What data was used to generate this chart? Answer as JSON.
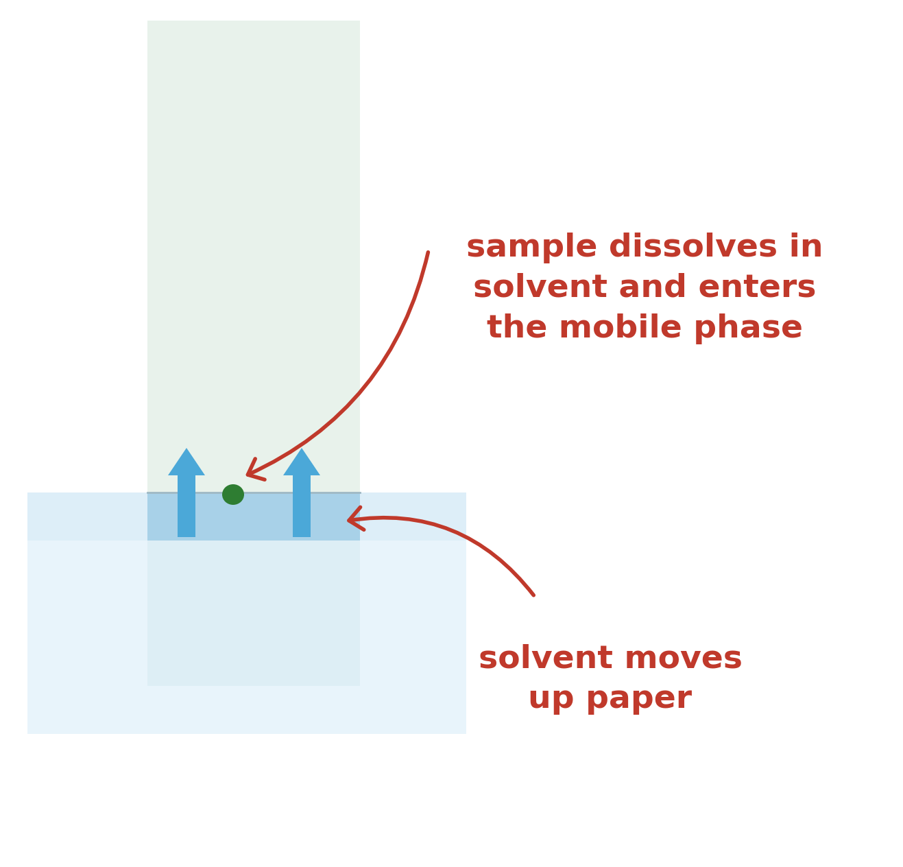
{
  "bg_color": "#ffffff",
  "fig_width": 13.17,
  "fig_height": 12.64,
  "paper_color": "#e8f2eb",
  "paper_border_color": "#c8d8ca",
  "trough_color": "#ddeef8",
  "trough_bg_color": "#e8f4fb",
  "solvent_band_color": "#a8d1e8",
  "solvent_band_line_color": "#9eb8c4",
  "green_dot_color": "#2e7d32",
  "arrow_color": "#4ba8d8",
  "text_color": "#c0392b",
  "label1_text": "sample dissolves in\nsolvent and enters\nthe mobile phase",
  "label2_text": "solvent moves\nup paper",
  "label1_fontsize": 34,
  "label2_fontsize": 34,
  "curve_lw": 4.0
}
